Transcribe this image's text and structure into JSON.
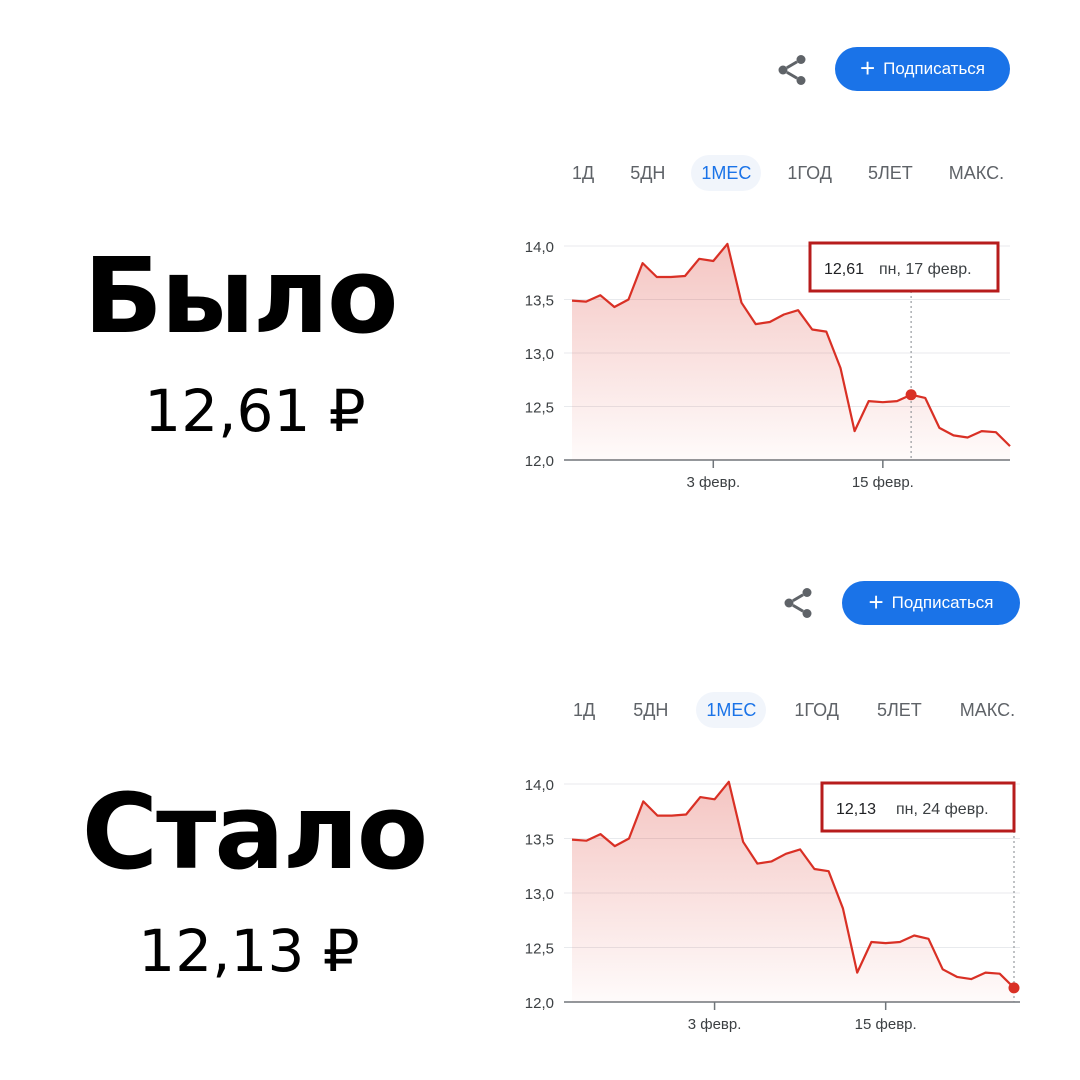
{
  "panels": [
    {
      "big_label": "Было",
      "price": "12,61 ₽",
      "subscribe_label": "Подписаться",
      "tabs": [
        "1Д",
        "5ДН",
        "1МЕС",
        "1ГОД",
        "5ЛЕТ",
        "МАКС."
      ],
      "active_tab": "1МЕС",
      "tooltip": {
        "value": "12,61",
        "date": "пн, 17 февр."
      }
    },
    {
      "big_label": "Стало",
      "price": "12,13 ₽",
      "subscribe_label": "Подписаться",
      "tabs": [
        "1Д",
        "5ДН",
        "1МЕС",
        "1ГОД",
        "5ЛЕТ",
        "МАКС."
      ],
      "active_tab": "1МЕС",
      "tooltip": {
        "value": "12,13",
        "date": "пн, 24 февр."
      }
    }
  ],
  "colors": {
    "line": "#d93025",
    "tooltip_border": "#b71c1c",
    "accent": "#1a73e8"
  },
  "chart_data": [
    {
      "type": "area",
      "y_tick_labels": [
        "14,0",
        "13,5",
        "13,0",
        "12,5",
        "12,0"
      ],
      "y_ticks": [
        14.0,
        13.5,
        13.0,
        12.5,
        12.0
      ],
      "ylim": [
        12.0,
        14.0
      ],
      "x_tick_labels": [
        "3 февр.",
        "15 февр."
      ],
      "x_tick_indices": [
        10,
        22
      ],
      "grid": true,
      "values": [
        13.49,
        13.48,
        13.54,
        13.43,
        13.5,
        13.84,
        13.71,
        13.71,
        13.72,
        13.88,
        13.86,
        14.02,
        13.47,
        13.27,
        13.29,
        13.36,
        13.4,
        13.22,
        13.2,
        12.86,
        12.27,
        12.55,
        12.54,
        12.55,
        12.61,
        12.58,
        12.3,
        12.23,
        12.21,
        12.27,
        12.26,
        12.13
      ],
      "highlight_index": 24
    },
    {
      "type": "area",
      "y_tick_labels": [
        "14,0",
        "13,5",
        "13,0",
        "12,5",
        "12,0"
      ],
      "y_ticks": [
        14.0,
        13.5,
        13.0,
        12.5,
        12.0
      ],
      "ylim": [
        12.0,
        14.0
      ],
      "x_tick_labels": [
        "3 февр.",
        "15 февр."
      ],
      "x_tick_indices": [
        10,
        22
      ],
      "grid": true,
      "values": [
        13.49,
        13.48,
        13.54,
        13.43,
        13.5,
        13.84,
        13.71,
        13.71,
        13.72,
        13.88,
        13.86,
        14.02,
        13.47,
        13.27,
        13.29,
        13.36,
        13.4,
        13.22,
        13.2,
        12.86,
        12.27,
        12.55,
        12.54,
        12.55,
        12.61,
        12.58,
        12.3,
        12.23,
        12.21,
        12.27,
        12.26,
        12.13
      ],
      "highlight_index": 31
    }
  ]
}
